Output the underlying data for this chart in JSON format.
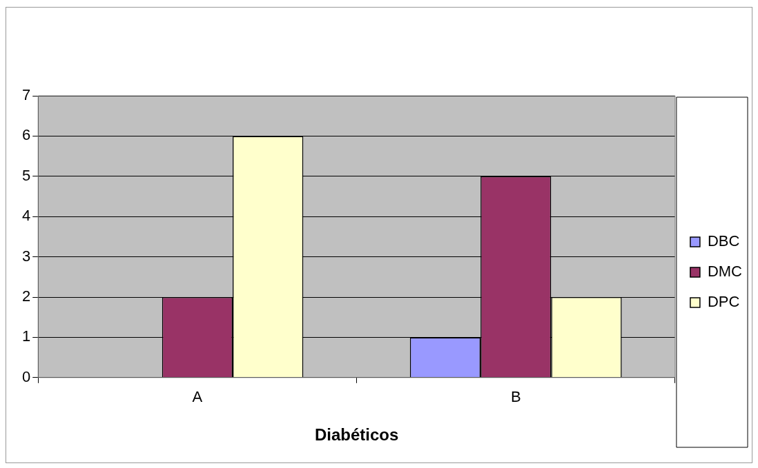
{
  "chart_data": {
    "type": "bar",
    "xlabel": "Diabéticos",
    "categories": [
      "A",
      "B"
    ],
    "series": [
      {
        "name": "DBC",
        "color": "#9999ff",
        "values": [
          0,
          1
        ]
      },
      {
        "name": "DMC",
        "color": "#993366",
        "values": [
          2,
          5
        ]
      },
      {
        "name": "DPC",
        "color": "#ffffcc",
        "values": [
          6,
          2
        ]
      }
    ],
    "ylim": [
      0,
      7
    ],
    "yticks": [
      0,
      1,
      2,
      3,
      4,
      5,
      6,
      7
    ],
    "grid": "y",
    "legend": "right"
  }
}
